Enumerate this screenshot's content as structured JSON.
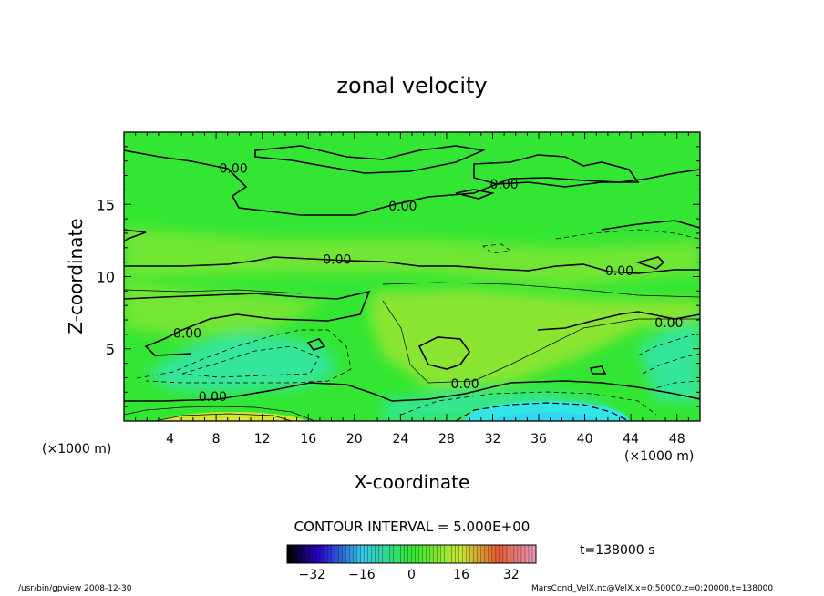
{
  "chart_data": {
    "type": "contour",
    "title": "zonal velocity",
    "xlabel": "X-coordinate",
    "ylabel": "Z-coordinate",
    "x_unit_label": "(×1000 m)",
    "z_unit_label": "(×1000 m)",
    "xlim": [
      0,
      50
    ],
    "ylim": [
      0,
      20
    ],
    "x_ticks": [
      4,
      8,
      12,
      16,
      20,
      24,
      28,
      32,
      36,
      40,
      44,
      48
    ],
    "y_ticks": [
      5,
      10,
      15
    ],
    "contour_interval_text": "CONTOUR INTERVAL = 5.000E+00",
    "contour_labels": [
      {
        "text": "0.00",
        "x": 9.5,
        "z": 17.5
      },
      {
        "text": "0.00",
        "x": 33,
        "z": 16.4
      },
      {
        "text": "0.00",
        "x": 24.2,
        "z": 14.9
      },
      {
        "text": "0.00",
        "x": 18.5,
        "z": 11.2
      },
      {
        "text": "0.00",
        "x": 43,
        "z": 10.4
      },
      {
        "text": "0.00",
        "x": 5.5,
        "z": 6.1
      },
      {
        "text": "0.00",
        "x": 47.3,
        "z": 6.8
      },
      {
        "text": "0.00",
        "x": 29.6,
        "z": 2.6
      },
      {
        "text": "0.00",
        "x": 7.7,
        "z": 1.7
      }
    ],
    "colorbar": {
      "ticks": [
        -32,
        -16,
        0,
        16,
        32
      ],
      "range": [
        -40,
        40
      ],
      "time_label": "t=138000 s"
    },
    "colors": {
      "background_field": "#33e633",
      "neg_weak": "#33e6b0",
      "neg_strong": "#33e6f0",
      "pos_weak": "#9ae633",
      "pos_strong": "#e6e633"
    }
  },
  "footer": {
    "left": "/usr/bin/gpview 2008-12-30",
    "right": "MarsCond_VelX.nc@VelX,x=0:50000,z=0:20000,t=138000"
  }
}
